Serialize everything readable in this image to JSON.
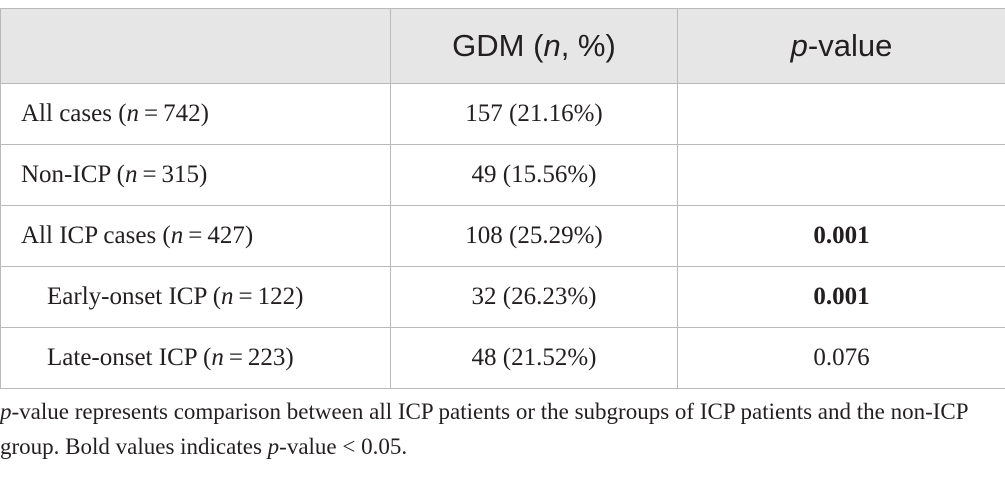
{
  "table": {
    "header": {
      "col1": "",
      "gdm_main": "GDM (",
      "gdm_n": "n",
      "gdm_rest": ", %)",
      "p_italic": "p",
      "p_rest": "-value"
    },
    "rows": [
      {
        "label": "All cases (",
        "n_var": "n",
        "n_rest": " = 742)",
        "gdm": "157 (21.16%)",
        "p": "",
        "p_bold": false,
        "indent": false
      },
      {
        "label": "Non-ICP (",
        "n_var": "n",
        "n_rest": " = 315)",
        "gdm": "49 (15.56%)",
        "p": "",
        "p_bold": false,
        "indent": false
      },
      {
        "label": "All ICP cases (",
        "n_var": "n",
        "n_rest": " = 427)",
        "gdm": "108 (25.29%)",
        "p": "0.001",
        "p_bold": true,
        "indent": false
      },
      {
        "label": "Early-onset ICP (",
        "n_var": "n",
        "n_rest": " = 122)",
        "gdm": "32 (26.23%)",
        "p": "0.001",
        "p_bold": true,
        "indent": true
      },
      {
        "label": "Late-onset ICP (",
        "n_var": "n",
        "n_rest": " = 223)",
        "gdm": "48 (21.52%)",
        "p": "0.076",
        "p_bold": false,
        "indent": true
      }
    ]
  },
  "footnote": {
    "p1_italic": "p",
    "p1_rest": "-value represents comparison between all ICP patients or the subgroups of ICP patients and the non-ICP group. Bold values indicates ",
    "p2_italic": "p",
    "p2_rest": "-value < 0.05."
  },
  "colors": {
    "header_bg": "#e6e6e6",
    "border": "#b9b9b9",
    "text": "#231f20"
  }
}
